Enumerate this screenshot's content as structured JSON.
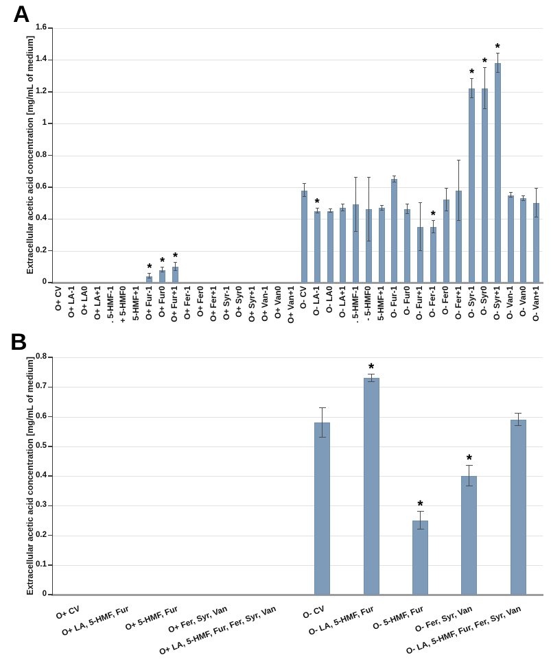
{
  "colors": {
    "bar_fill": "#7e9bba",
    "bar_border": "#6e8eae",
    "gridline": "#e2e2e2",
    "baseline": "#9c9c9c",
    "axis": "#3a3a3a",
    "error_bar": "#4d4d4d",
    "text": "#111111"
  },
  "chart_data": [
    {
      "type": "bar",
      "panel_label": "A",
      "title": "",
      "xlabel": "",
      "ylabel": "Extracellular acetic acid concentration [mg/mL of medium]",
      "ylim": [
        0,
        1.6
      ],
      "yticks": [
        "0",
        "0.2",
        "0.4",
        "0.6",
        "0.8",
        "1",
        "1.2",
        "1.4",
        "1.6"
      ],
      "grid": true,
      "legend": "none",
      "significance_marker": "*",
      "categories": [
        "O+ CV",
        "O+ LA-1",
        "O+ LA0",
        "O+ LA+1",
        ". 5-HMF-1",
        "+ 5-HMF0",
        "5-HMF+1",
        "O+ Fur-1",
        "O+ Fur0",
        "O+ Fur+1",
        "O+ Fer-1",
        "O+ Fer0",
        "O+ Fer+1",
        "O+ Syr-1",
        "O+ Syr0",
        "O+ Syr+1",
        "O+ Van-1",
        "O+ Van0",
        "O+ Van+1",
        "O- CV",
        "O- LA-1",
        "O- LA0",
        "O- LA+1",
        ". 5-HMF-1",
        "- 5-HMF0",
        "5-HMF+1",
        "O- Fur-1",
        "O- Fur0",
        "O- Fur+1",
        "O- Fer-1",
        "O- Fer0",
        "O- Fer+1",
        "O- Syr-1",
        "O- Syr0",
        "O- Syr+1",
        "O- Van-1",
        "O- Van0",
        "O- Van+1"
      ],
      "values": [
        0,
        0,
        0,
        0,
        0,
        0,
        0,
        0.04,
        0.08,
        0.1,
        0,
        0,
        0,
        0,
        0,
        0,
        0,
        0,
        0,
        0.58,
        0.45,
        0.45,
        0.47,
        0.49,
        0.46,
        0.47,
        0.65,
        0.46,
        0.35,
        0.35,
        0.52,
        0.58,
        1.22,
        1.22,
        1.38,
        0.55,
        0.53,
        0.5
      ],
      "errors": [
        0,
        0,
        0,
        0,
        0,
        0,
        0,
        0.015,
        0.015,
        0.025,
        0,
        0,
        0,
        0,
        0,
        0,
        0,
        0,
        0,
        0.04,
        0.015,
        0.01,
        0.02,
        0.17,
        0.2,
        0.015,
        0.02,
        0.03,
        0.15,
        0.04,
        0.07,
        0.19,
        0.06,
        0.13,
        0.06,
        0.015,
        0.015,
        0.09
      ],
      "significant": [
        0,
        0,
        0,
        0,
        0,
        0,
        0,
        1,
        1,
        1,
        0,
        0,
        0,
        0,
        0,
        0,
        0,
        0,
        0,
        0,
        1,
        0,
        0,
        0,
        0,
        0,
        0,
        0,
        0,
        1,
        0,
        0,
        1,
        1,
        1,
        0,
        0,
        0
      ]
    },
    {
      "type": "bar",
      "panel_label": "B",
      "title": "",
      "xlabel": "",
      "ylabel": "Extracellular acetic acid concentration [mg/mL of medium]",
      "ylim": [
        0,
        0.8
      ],
      "yticks": [
        "0",
        "0.1",
        "0.2",
        "0.3",
        "0.4",
        "0.5",
        "0.6",
        "0.7",
        "0.8"
      ],
      "grid": true,
      "legend": "none",
      "significance_marker": "*",
      "categories": [
        "O+ CV",
        "O+ LA, 5-HMF, Fur",
        "O+ 5-HMF, Fur",
        "O+ Fer, Syr, Van",
        "O+ LA, 5-HMF, Fur, Fer, Syr, Van",
        "O- CV",
        "O- LA, 5-HMF, Fur",
        "O- 5-HMF, Fur",
        "O- Fer, Syr, Van",
        "O- LA, 5-HMF, Fur, Fer, Syr, Van"
      ],
      "values": [
        0,
        0,
        0,
        0,
        0,
        0.58,
        0.73,
        0.25,
        0.4,
        0.59
      ],
      "errors": [
        0,
        0,
        0,
        0,
        0,
        0.05,
        0.012,
        0.03,
        0.035,
        0.02
      ],
      "significant": [
        0,
        0,
        0,
        0,
        0,
        0,
        1,
        1,
        1,
        0
      ]
    }
  ]
}
